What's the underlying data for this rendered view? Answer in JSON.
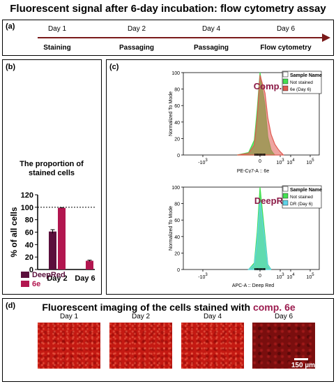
{
  "title": "Fluorescent signal after 6-day incubation: flow cytometry assay",
  "panel_a": {
    "label": "(a)",
    "days": [
      "Day 1",
      "Day 2",
      "Day 4",
      "Day 6"
    ],
    "stages": [
      "Staining",
      "Passaging",
      "Passaging",
      "Flow cytometry"
    ]
  },
  "panel_b": {
    "label": "(b)"
  },
  "panel_c": {
    "label": "(c)"
  },
  "panel_d": {
    "label": "(d)",
    "title_prefix": "Fluorescent imaging of the cells stained with ",
    "title_highlight": "comp. 6e",
    "days": [
      "Day 1",
      "Day 2",
      "Day 4",
      "Day 6"
    ],
    "scale_bar": "150 µm"
  },
  "colors": {
    "deepred": "#5b0f3c",
    "6e": "#b2164f",
    "not_stained": "#45e052",
    "sample_6e": "#e05a52",
    "sample_dr": "#5fd3e8",
    "comp_label": "#8b1a46"
  },
  "chart_data": [
    {
      "type": "bar",
      "title": "The proportion of stained cells",
      "xlabel": "",
      "ylabel": "% of all cells",
      "categories": [
        "Day 2",
        "Day 6"
      ],
      "ylim": [
        0,
        120
      ],
      "yticks": [
        "0",
        "20",
        "40",
        "60",
        "80",
        "100",
        "120"
      ],
      "reference_line": 100,
      "grid": false,
      "legend_placement": "bottom",
      "series": [
        {
          "name": "DeepRed",
          "values": [
            61,
            null
          ],
          "errors": [
            3,
            null
          ]
        },
        {
          "name": "6e",
          "values": [
            99,
            14
          ],
          "errors": [
            0.5,
            1
          ]
        }
      ]
    },
    {
      "type": "area",
      "title": "Comp. 6e",
      "xlabel": "PE-Cy7-A :: 6e",
      "ylabel": "Normalized To Mode",
      "ylim": [
        0,
        100
      ],
      "yticks": [
        "0",
        "20",
        "40",
        "60",
        "80",
        "100"
      ],
      "xticks": [
        "-10^3",
        "0",
        "10^3",
        "10^4",
        "10^5"
      ],
      "legend_title": "Sample Name",
      "legend_placement": "top-right",
      "series": [
        {
          "name": "Not stained",
          "x": [
            -400,
            -200,
            -100,
            -50,
            0,
            50,
            100,
            200,
            300,
            400
          ],
          "y": [
            0,
            3,
            18,
            55,
            100,
            60,
            22,
            6,
            2,
            0
          ]
        },
        {
          "name": "6e (Day 6)",
          "x": [
            -400,
            -200,
            -100,
            -50,
            0,
            50,
            100,
            200,
            400,
            700,
            1000,
            1300,
            1700
          ],
          "y": [
            0,
            2,
            12,
            45,
            97,
            75,
            45,
            25,
            13,
            7,
            4,
            2,
            0
          ]
        }
      ]
    },
    {
      "type": "area",
      "title": "DeepRed",
      "xlabel": "APC-A :: Deep Red",
      "ylabel": "Normalized To Mode",
      "ylim": [
        0,
        100
      ],
      "yticks": [
        "0",
        "20",
        "40",
        "60",
        "80",
        "100"
      ],
      "xticks": [
        "-10^3",
        "0",
        "10^3",
        "10^4",
        "10^5"
      ],
      "legend_title": "Sample Name",
      "legend_placement": "top-right",
      "series": [
        {
          "name": "Not stained",
          "x": [
            -200,
            -100,
            -50,
            0,
            50,
            100,
            200
          ],
          "y": [
            0,
            8,
            45,
            100,
            40,
            6,
            0
          ]
        },
        {
          "name": "DR (Day 6)",
          "x": [
            -200,
            -100,
            -50,
            0,
            50,
            100,
            200
          ],
          "y": [
            0,
            6,
            35,
            85,
            35,
            5,
            0
          ]
        }
      ]
    }
  ]
}
